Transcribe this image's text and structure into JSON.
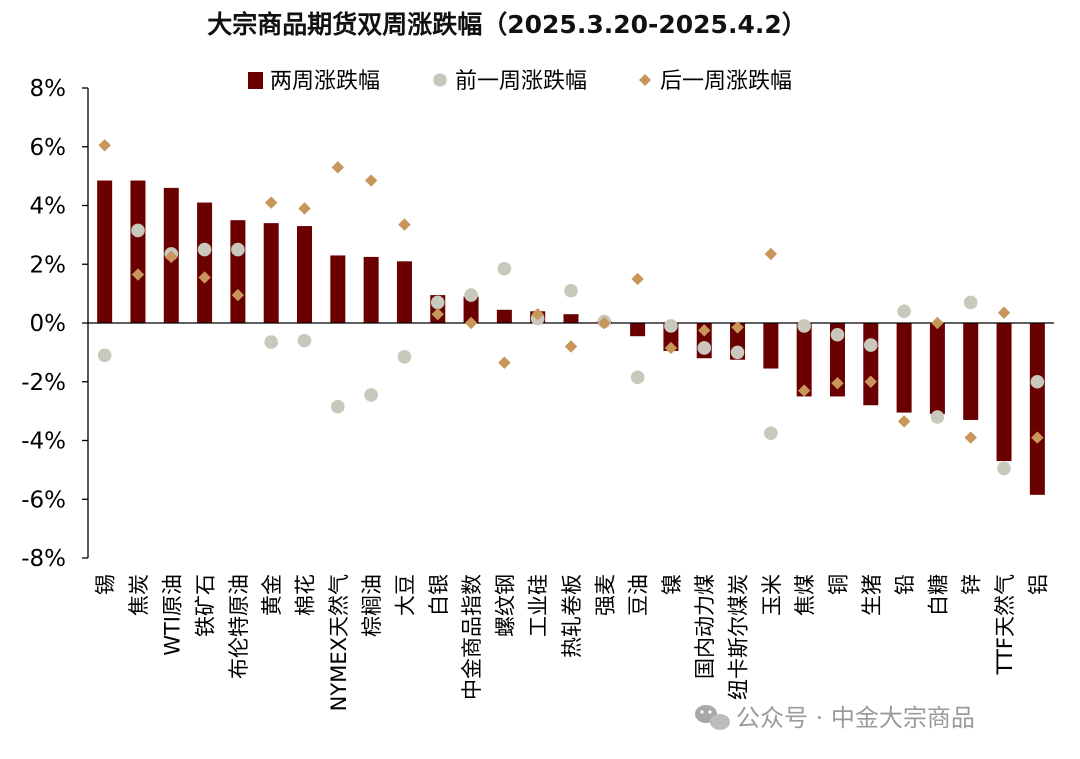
{
  "chart_data": {
    "type": "bar",
    "title": "大宗商品期货双周涨跌幅（2025.3.20-2025.4.2）",
    "xlabel": "",
    "ylabel": "",
    "ylim": [
      -8,
      8
    ],
    "yticks": [
      8,
      6,
      4,
      2,
      0,
      -2,
      -4,
      -6,
      -8
    ],
    "ytick_labels": [
      "8%",
      "6%",
      "4%",
      "2%",
      "0%",
      "-2%",
      "-4%",
      "-6%",
      "-8%"
    ],
    "legend_position": "top-center",
    "categories": [
      "锡",
      "焦炭",
      "WTI原油",
      "铁矿石",
      "布伦特原油",
      "黄金",
      "棉花",
      "NYMEX天然气",
      "棕榈油",
      "大豆",
      "白银",
      "中金商品指数",
      "螺纹钢",
      "工业硅",
      "热轧卷板",
      "强麦",
      "豆油",
      "镍",
      "国内动力煤",
      "纽卡斯尔煤炭",
      "玉米",
      "焦煤",
      "铜",
      "生猪",
      "铅",
      "白糖",
      "锌",
      "TTF天然气",
      "铝"
    ],
    "series": [
      {
        "name": "两周涨跌幅",
        "type": "bar",
        "color": "#6b0000",
        "values": [
          4.85,
          4.85,
          4.6,
          4.1,
          3.5,
          3.4,
          3.3,
          2.3,
          2.25,
          2.1,
          0.95,
          0.9,
          0.45,
          0.4,
          0.3,
          0.05,
          -0.45,
          -0.95,
          -1.2,
          -1.25,
          -1.55,
          -2.5,
          -2.5,
          -2.8,
          -3.05,
          -3.1,
          -3.3,
          -4.7,
          -5.85
        ]
      },
      {
        "name": "前一周涨跌幅",
        "type": "scatter",
        "marker": "circle",
        "color": "#c8c8bc",
        "values": [
          -1.1,
          3.15,
          2.35,
          2.5,
          2.5,
          -0.65,
          -0.6,
          -2.85,
          -2.45,
          -1.15,
          0.7,
          0.95,
          1.85,
          0.15,
          1.1,
          0.05,
          -1.85,
          -0.1,
          -0.85,
          -1.0,
          -3.75,
          -0.1,
          -0.4,
          -0.75,
          0.4,
          -3.2,
          0.7,
          -4.95,
          -2.0
        ]
      },
      {
        "name": "后一周涨跌幅",
        "type": "scatter",
        "marker": "diamond",
        "color": "#c8955a",
        "values": [
          6.05,
          1.65,
          2.25,
          1.55,
          0.95,
          4.1,
          3.9,
          5.3,
          4.85,
          3.35,
          0.3,
          0.0,
          -1.35,
          0.3,
          -0.8,
          0.0,
          1.5,
          -0.85,
          -0.25,
          -0.15,
          2.35,
          -2.3,
          -2.05,
          -2.0,
          -3.35,
          0.0,
          -3.9,
          0.35,
          -3.9
        ]
      }
    ]
  },
  "watermark": {
    "text": "公众号 · 中金大宗商品"
  }
}
